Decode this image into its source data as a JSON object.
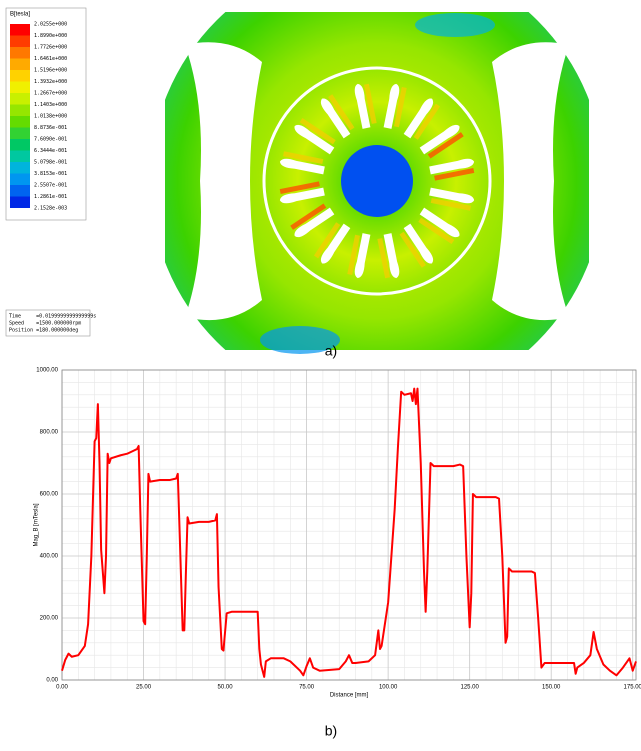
{
  "figure_a": {
    "legend_title": "B[tesla]",
    "legend_labels": [
      "2.0255e+000",
      "1.8990e+000",
      "1.7726e+000",
      "1.6461e+000",
      "1.5196e+000",
      "1.3932e+000",
      "1.2667e+000",
      "1.1403e+000",
      "1.0138e+000",
      "8.8736e-001",
      "7.6090e-001",
      "6.3444e-001",
      "5.0798e-001",
      "3.8153e-001",
      "2.5507e-001",
      "1.2861e-001",
      "2.1528e-003"
    ],
    "legend_colors": [
      "#ff0000",
      "#ff3c00",
      "#ff7800",
      "#ffaa00",
      "#ffd200",
      "#f0f000",
      "#c8f000",
      "#96e600",
      "#64dc00",
      "#32d232",
      "#00c864",
      "#00c8a0",
      "#00b4dc",
      "#0096f0",
      "#0064f0",
      "#0028e6"
    ],
    "info": [
      "Time     =0.0199999999999999s",
      "Speed    =1500.000000rpm",
      "Position =180.000000deg"
    ],
    "caption": "a)"
  },
  "chart_data": {
    "type": "line",
    "xlabel": "Distance [mm]",
    "ylabel": "Mag_B [mTesla]",
    "color": "#ff0000",
    "x": [
      0,
      1,
      2,
      3,
      5,
      7,
      8,
      9,
      10,
      10.5,
      11,
      11.5,
      12,
      13,
      13.5,
      14,
      14.5,
      15,
      18,
      20,
      22,
      23,
      23.5,
      24,
      25,
      25.5,
      26,
      26.5,
      27,
      30,
      33,
      35,
      35.5,
      36,
      37,
      37.5,
      38,
      38.5,
      39,
      42,
      45,
      47,
      47.5,
      48,
      49,
      49.5,
      50.5,
      52,
      55,
      57,
      60,
      60.5,
      61,
      62,
      62.5,
      64,
      68,
      70,
      73,
      74,
      75,
      76,
      77,
      79,
      85,
      87,
      88,
      89,
      90,
      94,
      96,
      97,
      97.5,
      98,
      100,
      102,
      103,
      104,
      105,
      107,
      107.5,
      108,
      108.5,
      109,
      110,
      111,
      111.5,
      112,
      113,
      114,
      117,
      120,
      122,
      123,
      124,
      125,
      125.5,
      126,
      127,
      130,
      133,
      134,
      135,
      136,
      136.5,
      137,
      138,
      141,
      144,
      145,
      146,
      147,
      148,
      150,
      155,
      157,
      157.5,
      158,
      160,
      162,
      163,
      164,
      166,
      168,
      170,
      172,
      174,
      175,
      176
    ],
    "values": [
      30,
      65,
      85,
      75,
      80,
      110,
      180,
      400,
      770,
      780,
      890,
      700,
      420,
      280,
      400,
      730,
      700,
      715,
      725,
      730,
      740,
      745,
      755,
      550,
      190,
      180,
      400,
      665,
      640,
      645,
      645,
      650,
      665,
      500,
      160,
      160,
      350,
      525,
      505,
      510,
      510,
      515,
      535,
      300,
      100,
      95,
      215,
      220,
      220,
      220,
      220,
      100,
      50,
      10,
      60,
      70,
      70,
      60,
      30,
      15,
      45,
      70,
      40,
      30,
      35,
      60,
      80,
      55,
      55,
      60,
      80,
      160,
      100,
      110,
      250,
      550,
      750,
      930,
      920,
      925,
      900,
      940,
      890,
      940,
      700,
      350,
      220,
      350,
      700,
      690,
      690,
      690,
      695,
      690,
      400,
      170,
      280,
      600,
      590,
      590,
      590,
      585,
      400,
      120,
      140,
      360,
      350,
      350,
      350,
      345,
      200,
      40,
      55,
      55,
      55,
      55,
      20,
      40,
      55,
      80,
      155,
      100,
      50,
      30,
      15,
      40,
      70,
      30,
      60
    ],
    "xlim": [
      0,
      176
    ],
    "ylim": [
      0,
      1000
    ],
    "xticks": [
      {
        "value": 0,
        "label": "0.00"
      },
      {
        "value": 25,
        "label": "25.00"
      },
      {
        "value": 50,
        "label": "50.00"
      },
      {
        "value": 75,
        "label": "75.00"
      },
      {
        "value": 100,
        "label": "100.00"
      },
      {
        "value": 125,
        "label": "125.00"
      },
      {
        "value": 150,
        "label": "150.00"
      },
      {
        "value": 175,
        "label": "175.00"
      }
    ],
    "yticks": [
      {
        "value": 0,
        "label": "0.00"
      },
      {
        "value": 200,
        "label": "200.00"
      },
      {
        "value": 400,
        "label": "400.00"
      },
      {
        "value": 600,
        "label": "600.00"
      },
      {
        "value": 800,
        "label": "800.00"
      },
      {
        "value": 1000,
        "label": "1000.00"
      }
    ],
    "grid": true,
    "minor_grid": true,
    "caption": "b)"
  }
}
